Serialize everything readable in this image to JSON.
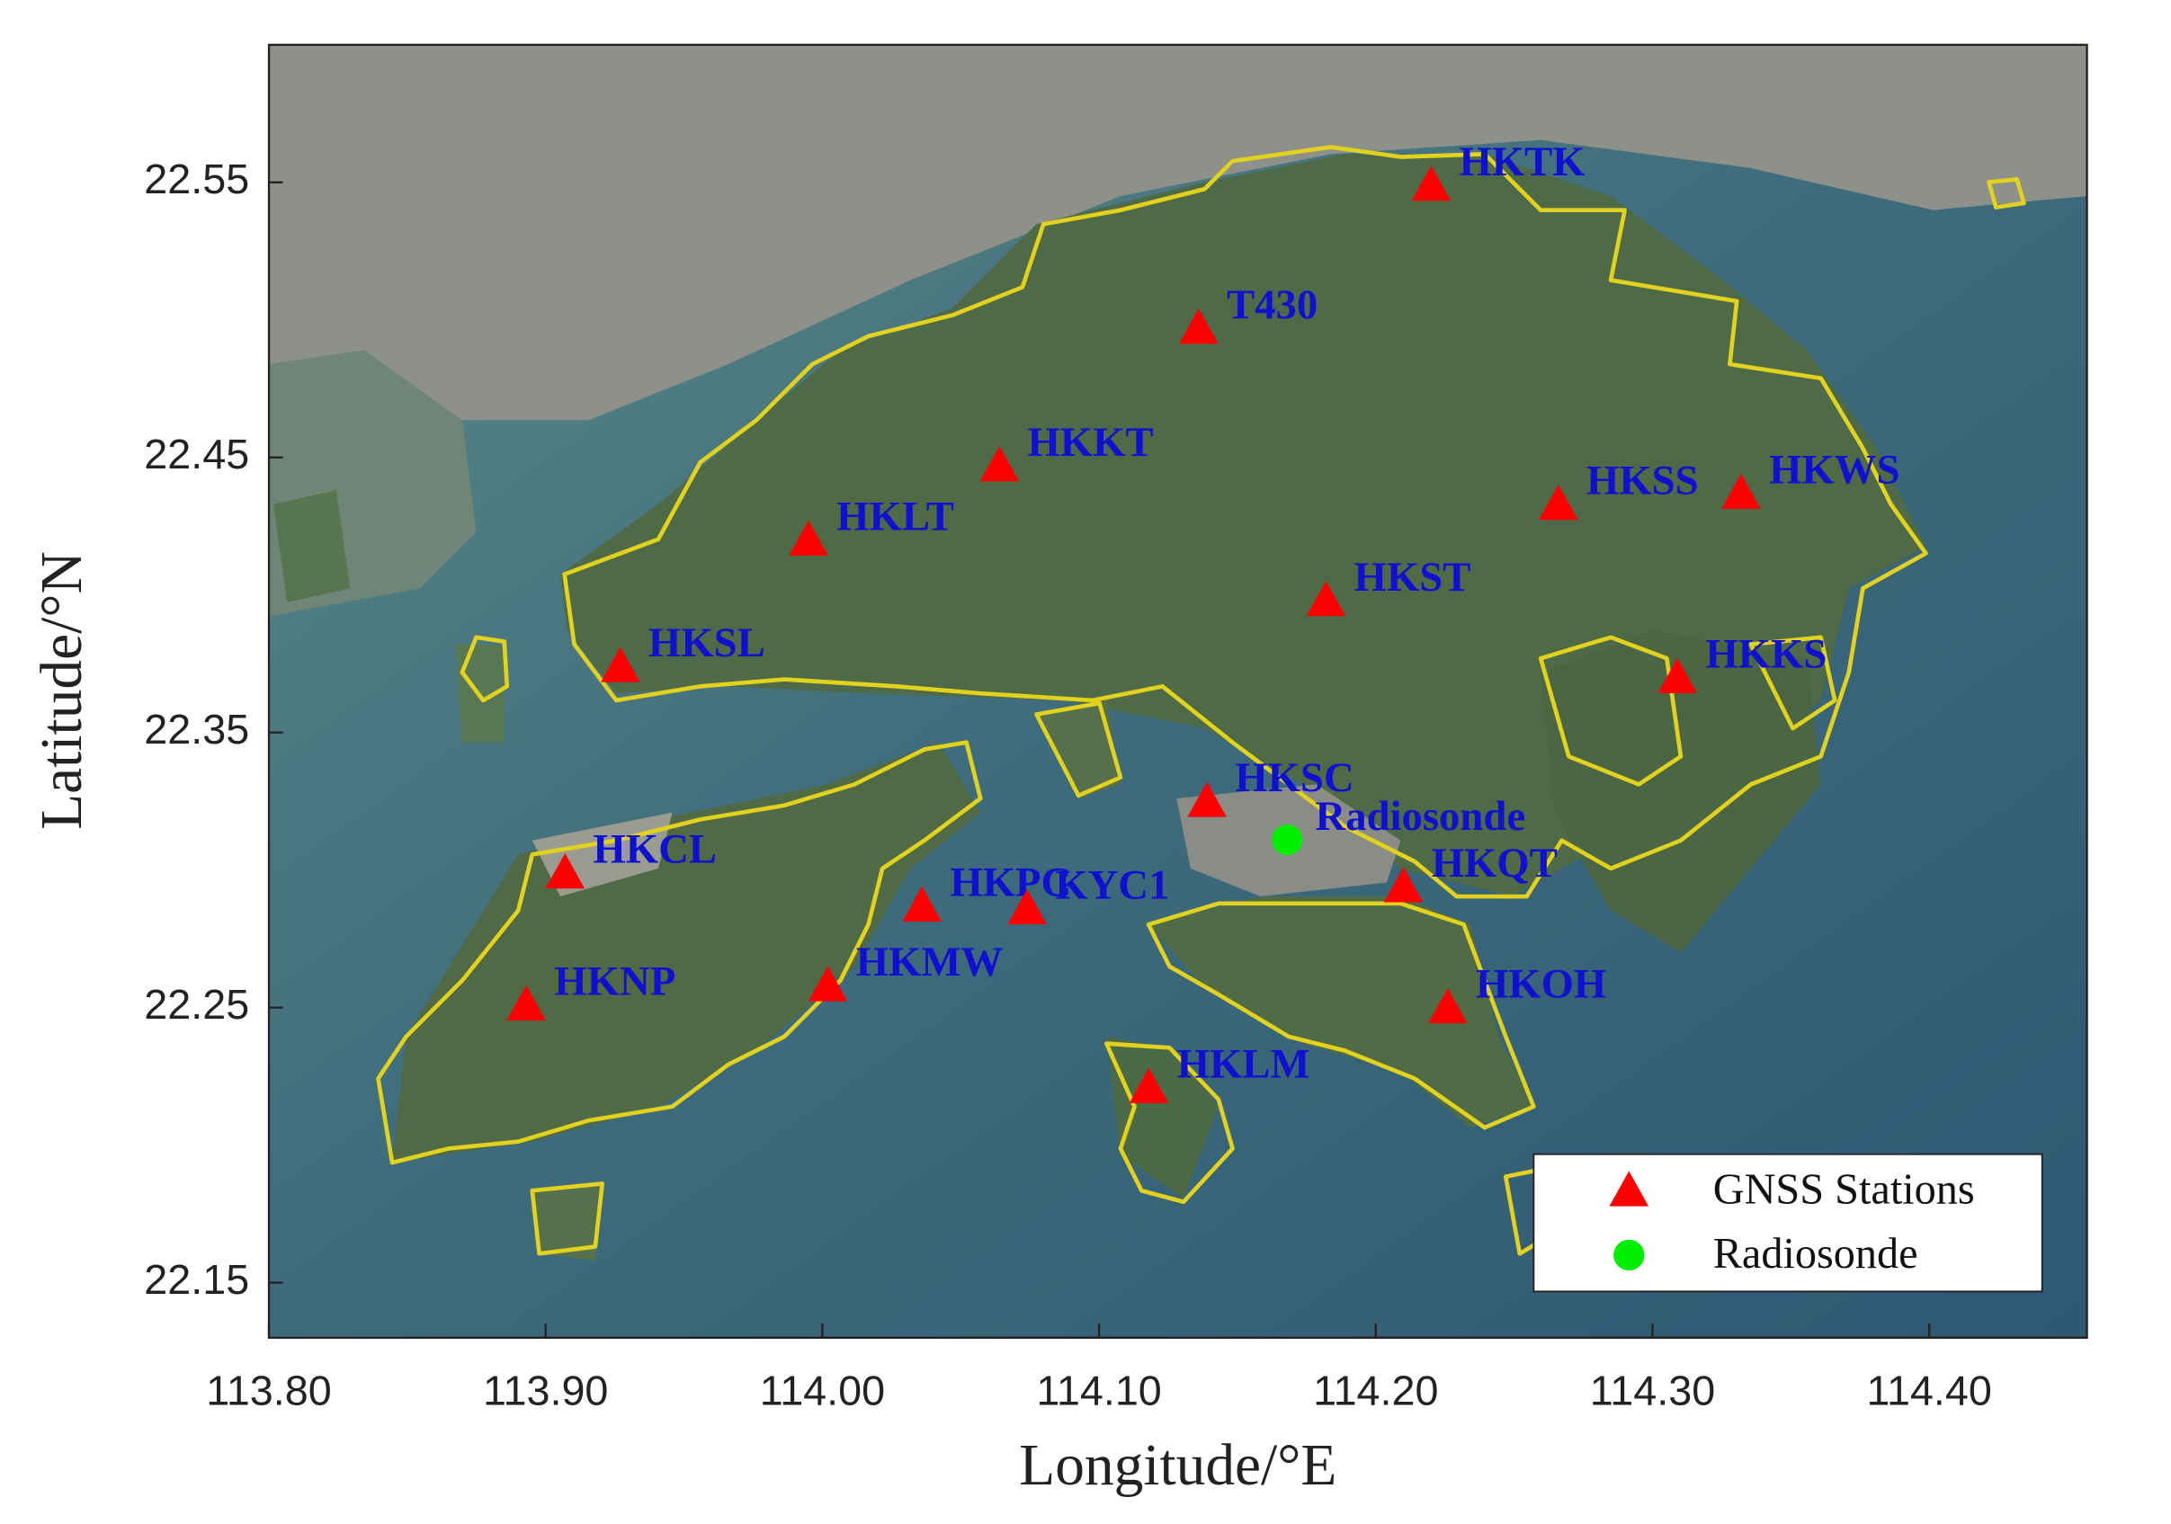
{
  "chart_data": {
    "type": "scatter",
    "xlabel": "Longitude/°E",
    "ylabel": "Latitude/°N",
    "xlim": [
      113.8,
      114.457
    ],
    "ylim": [
      22.13,
      22.6
    ],
    "xticks": [
      {
        "value": 113.8,
        "label": "113.80"
      },
      {
        "value": 113.9,
        "label": "113.90"
      },
      {
        "value": 114.0,
        "label": "114.00"
      },
      {
        "value": 114.1,
        "label": "114.10"
      },
      {
        "value": 114.2,
        "label": "114.20"
      },
      {
        "value": 114.3,
        "label": "114.30"
      },
      {
        "value": 114.4,
        "label": "114.40"
      }
    ],
    "yticks": [
      22.15,
      22.25,
      22.35,
      22.45,
      22.55
    ],
    "legend": "lower right",
    "label_color": "#1010d0",
    "series": [
      {
        "name": "GNSS Stations",
        "color": "#ff0000",
        "marker": "triangle",
        "labels": [
          "HKTK",
          "T430",
          "HKKT",
          "HKLT",
          "HKSS",
          "HKWS",
          "HKST",
          "HKSL",
          "HKKS",
          "HKSC",
          "HKCL",
          "HKQT",
          "HKPC",
          "KYC1",
          "HKMW",
          "HKNP",
          "HKOH",
          "HKLM"
        ],
        "x": [
          114.22,
          114.136,
          114.064,
          113.995,
          114.266,
          114.332,
          114.182,
          113.927,
          114.309,
          114.139,
          113.907,
          114.21,
          114.036,
          114.074,
          114.002,
          113.893,
          114.226,
          114.118
        ],
        "y": [
          22.549,
          22.497,
          22.447,
          22.42,
          22.433,
          22.437,
          22.398,
          22.374,
          22.37,
          22.325,
          22.299,
          22.294,
          22.287,
          22.286,
          22.258,
          22.251,
          22.25,
          22.221
        ]
      },
      {
        "name": "Radiosonde",
        "color": "#00ee00",
        "marker": "circle",
        "labels": [
          "Radiosonde"
        ],
        "x": [
          114.168
        ],
        "y": [
          22.311
        ]
      }
    ]
  }
}
